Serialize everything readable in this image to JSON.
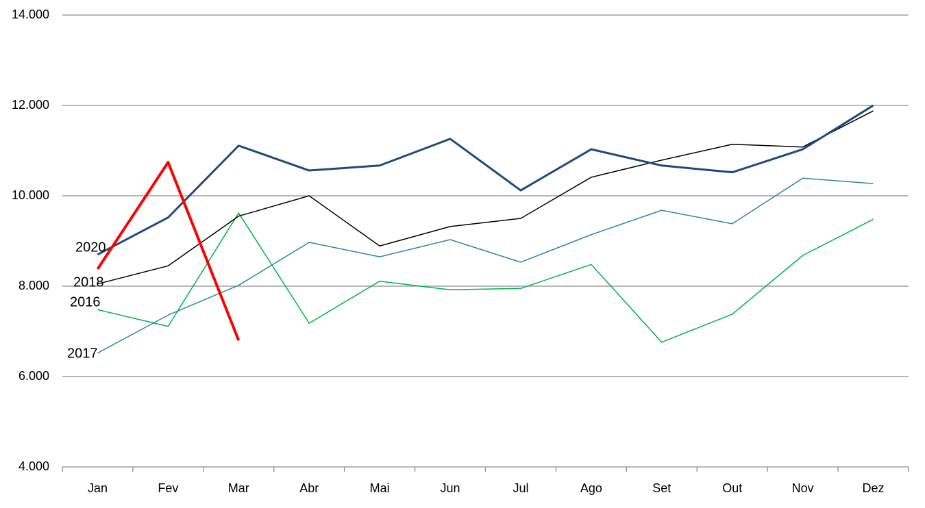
{
  "chart_data": {
    "type": "line",
    "categories": [
      "Jan",
      "Fev",
      "Mar",
      "Abr",
      "Mai",
      "Jun",
      "Jul",
      "Ago",
      "Set",
      "Out",
      "Nov",
      "Dez"
    ],
    "series": [
      {
        "name": "2020",
        "color": "#ff0000",
        "width": 4,
        "values": [
          8380,
          10740,
          6800,
          null,
          null,
          null,
          null,
          null,
          null,
          null,
          null,
          null
        ]
      },
      {
        "color": "#1f497d",
        "width": 3,
        "values": [
          8700,
          9520,
          11110,
          10560,
          10670,
          11260,
          10120,
          11030,
          10670,
          10520,
          11030,
          12000
        ]
      },
      {
        "name": "2018",
        "color": "#000000",
        "width": 1.5,
        "values": [
          8050,
          8450,
          9550,
          10000,
          8890,
          9320,
          9500,
          10410,
          10790,
          11140,
          11080,
          11880
        ]
      },
      {
        "name": "2017",
        "color": "#31859c",
        "width": 1.5,
        "values": [
          6520,
          7360,
          8020,
          8970,
          8650,
          9030,
          8530,
          9140,
          9680,
          9380,
          10390,
          10270
        ]
      },
      {
        "name": "2016",
        "color": "#00b050",
        "width": 1.5,
        "values": [
          7480,
          7110,
          9620,
          7180,
          8110,
          7920,
          7950,
          8480,
          6760,
          7380,
          8680,
          9480
        ]
      }
    ],
    "ylim": [
      4000,
      14000
    ],
    "yticks": [
      {
        "value": 4000,
        "label": "4.000"
      },
      {
        "value": 6000,
        "label": "6.000"
      },
      {
        "value": 8000,
        "label": "8.000"
      },
      {
        "value": 10000,
        "label": "10.000"
      },
      {
        "value": 12000,
        "label": "12.000"
      },
      {
        "value": 14000,
        "label": "14.000"
      }
    ],
    "grid": true
  }
}
